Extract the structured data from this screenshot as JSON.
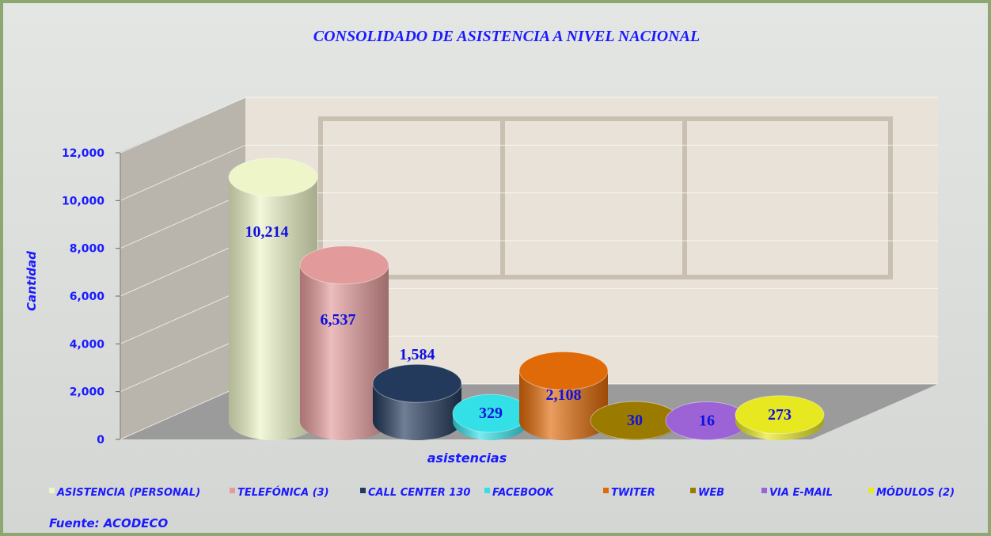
{
  "chart_data": {
    "type": "bar",
    "title": "CONSOLIDADO DE  ASISTENCIA A NIVEL NACIONAL",
    "y_label": "Cantidad",
    "x_label": "asistencias",
    "source": "Fuente: ACODECO",
    "categories": [
      "ASISTENCIA (PERSONAL)",
      "TELEFÓNICA (3)",
      "CALL CENTER 130",
      "FACEBOOK",
      "TWITER",
      "WEB",
      "VIA E-MAIL",
      "MÓDULOS (2)"
    ],
    "values": [
      10214,
      6537,
      1584,
      329,
      2108,
      30,
      16,
      273
    ],
    "value_labels": [
      "10,214",
      "6,537",
      "1,584",
      "329",
      "2,108",
      "30",
      "16",
      "273"
    ],
    "colors": [
      "#eef5c8",
      "#e39a9a",
      "#243a5c",
      "#33e0e8",
      "#e06a08",
      "#9a7b00",
      "#9b63d6",
      "#e8e820"
    ],
    "ylim": [
      0,
      12000
    ],
    "yticks": [
      0,
      {
        "value": 2000,
        "label": "2,000"
      },
      {
        "value": 4000,
        "label": "4,000"
      },
      {
        "value": 6000,
        "label": "6,000"
      },
      {
        "value": 8000,
        "label": "8,000"
      },
      {
        "value": 10000,
        "label": "10,000"
      },
      {
        "value": 12000,
        "label": "12,000"
      }
    ],
    "legend": "bottom",
    "grid": true
  }
}
